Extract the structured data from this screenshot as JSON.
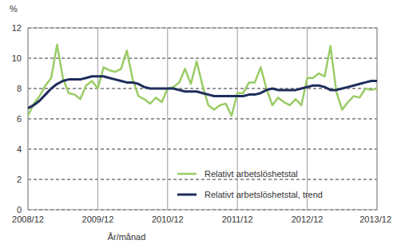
{
  "chart_data": {
    "type": "line",
    "y_label": "%",
    "x_label": "År/månad",
    "categories": [
      "2008/12",
      null,
      null,
      null,
      null,
      null,
      null,
      null,
      null,
      null,
      null,
      null,
      "2009/12",
      null,
      null,
      null,
      null,
      null,
      null,
      null,
      null,
      null,
      null,
      null,
      "2010/12",
      null,
      null,
      null,
      null,
      null,
      null,
      null,
      null,
      null,
      null,
      null,
      "2011/12",
      null,
      null,
      null,
      null,
      null,
      null,
      null,
      null,
      null,
      null,
      null,
      "2012/12",
      null,
      null,
      null,
      null,
      null,
      null,
      null,
      null,
      null,
      null,
      null,
      "2013/12"
    ],
    "series": [
      {
        "name": "Relativt arbetslöshetstal",
        "color": "#99cc66",
        "values": [
          6.2,
          7.0,
          7.5,
          8.2,
          8.7,
          10.9,
          8.7,
          7.7,
          7.6,
          7.3,
          8.2,
          8.5,
          8.0,
          9.4,
          9.2,
          9.1,
          9.3,
          10.5,
          8.6,
          7.5,
          7.3,
          7.0,
          7.4,
          7.1,
          8.0,
          8.1,
          8.4,
          9.3,
          8.3,
          9.8,
          8.2,
          6.9,
          6.6,
          6.9,
          7.0,
          6.2,
          7.7,
          7.7,
          8.4,
          8.4,
          9.4,
          8.0,
          6.9,
          7.4,
          7.1,
          6.9,
          7.3,
          6.9,
          8.7,
          8.7,
          9.0,
          8.8,
          10.8,
          7.8,
          6.6,
          7.1,
          7.5,
          7.4,
          8.0,
          7.9,
          8.0
        ]
      },
      {
        "name": "Relativt arbetslöshetstal, trend",
        "color": "#1f2d5c",
        "values": [
          6.7,
          6.9,
          7.2,
          7.6,
          8.0,
          8.3,
          8.5,
          8.6,
          8.6,
          8.6,
          8.7,
          8.8,
          8.8,
          8.8,
          8.7,
          8.6,
          8.5,
          8.4,
          8.4,
          8.3,
          8.1,
          8.0,
          8.0,
          8.0,
          8.0,
          8.0,
          7.9,
          7.8,
          7.8,
          7.8,
          7.7,
          7.6,
          7.5,
          7.5,
          7.5,
          7.5,
          7.5,
          7.5,
          7.6,
          7.6,
          7.7,
          7.9,
          8.0,
          7.9,
          7.9,
          7.9,
          7.9,
          8.0,
          8.1,
          8.2,
          8.2,
          8.1,
          7.9,
          7.9,
          8.0,
          8.1,
          8.2,
          8.3,
          8.4,
          8.5,
          8.5
        ]
      }
    ],
    "ylim": [
      0,
      12
    ],
    "yticks": [
      0,
      2,
      4,
      6,
      8,
      10,
      12
    ],
    "grid": true,
    "legend": "lower-right"
  }
}
